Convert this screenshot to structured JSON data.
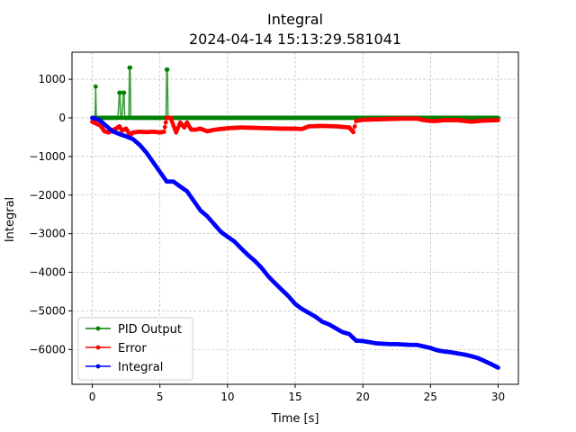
{
  "chart_data": {
    "type": "line",
    "title": "Integral",
    "subtitle": "2024-04-14 15:13:29.581041",
    "xlabel": "Time [s]",
    "ylabel": "Integral",
    "xlim": [
      -1.5,
      31.5
    ],
    "ylim": [
      -6900,
      1700
    ],
    "xticks": [
      0,
      5,
      10,
      15,
      20,
      25,
      30
    ],
    "yticks": [
      1000,
      0,
      -1000,
      -2000,
      -3000,
      -4000,
      -5000,
      -6000
    ],
    "ytick_labels": [
      "1000",
      "0",
      "−1000",
      "−2000",
      "−3000",
      "−4000",
      "−5000",
      "−6000"
    ],
    "grid": true,
    "legend_position": "lower-left",
    "series": [
      {
        "name": "PID Output",
        "color": "#008000",
        "x": [
          0,
          0.2,
          0.25,
          0.3,
          1.9,
          2.0,
          2.05,
          2.1,
          2.2,
          2.3,
          2.35,
          2.4,
          2.7,
          2.75,
          2.8,
          2.85,
          5.45,
          5.5,
          5.55,
          5.6,
          10,
          15,
          20,
          25,
          30
        ],
        "y": [
          0,
          0,
          810,
          0,
          0,
          650,
          650,
          0,
          0,
          650,
          650,
          0,
          0,
          1300,
          1300,
          0,
          0,
          1250,
          1250,
          0,
          0,
          0,
          0,
          0,
          0
        ]
      },
      {
        "name": "Error",
        "color": "#ff0000",
        "x": [
          0,
          0.3,
          0.6,
          0.9,
          1.2,
          1.5,
          1.8,
          2.0,
          2.2,
          2.5,
          2.8,
          3.0,
          3.5,
          4.0,
          4.5,
          5.0,
          5.3,
          5.5,
          5.8,
          6.0,
          6.2,
          6.5,
          6.8,
          7.0,
          7.3,
          7.6,
          8.0,
          8.5,
          9.0,
          10.0,
          11.0,
          12.0,
          13.0,
          14.0,
          15.0,
          15.5,
          16.0,
          17.0,
          18.0,
          19.0,
          19.3,
          19.5,
          20.0,
          21.0,
          22.0,
          23.0,
          24.0,
          24.5,
          25.0,
          25.5,
          26.0,
          27.0,
          28.0,
          29.0,
          30.0
        ],
        "y": [
          -100,
          -150,
          -200,
          -350,
          -380,
          -320,
          -270,
          -220,
          -330,
          -280,
          -450,
          -380,
          -360,
          -370,
          -360,
          -380,
          -360,
          0,
          0,
          -200,
          -380,
          -120,
          -250,
          -120,
          -300,
          -310,
          -280,
          -350,
          -310,
          -270,
          -250,
          -260,
          -270,
          -280,
          -280,
          -290,
          -220,
          -210,
          -220,
          -250,
          -370,
          -80,
          -50,
          -40,
          -30,
          -20,
          -20,
          -60,
          -80,
          -80,
          -60,
          -60,
          -100,
          -70,
          -60
        ]
      },
      {
        "name": "Integral",
        "color": "#0000ff",
        "x": [
          0,
          0.5,
          1.0,
          1.5,
          2.0,
          2.5,
          3.0,
          3.5,
          4.0,
          4.5,
          5.0,
          5.5,
          6.0,
          6.5,
          7.0,
          7.5,
          8.0,
          8.5,
          9.0,
          9.5,
          10.0,
          10.5,
          11.0,
          11.5,
          12.0,
          12.5,
          13.0,
          13.5,
          14.0,
          14.5,
          15.0,
          15.5,
          16.0,
          16.5,
          17.0,
          17.5,
          18.0,
          18.5,
          19.0,
          19.5,
          20.0,
          20.5,
          21.0,
          21.5,
          22.0,
          22.5,
          23.0,
          23.5,
          24.0,
          24.5,
          25.0,
          25.5,
          26.0,
          26.5,
          27.0,
          27.5,
          28.0,
          28.5,
          29.0,
          29.5,
          30.0
        ],
        "y": [
          0,
          -50,
          -200,
          -350,
          -420,
          -480,
          -550,
          -700,
          -900,
          -1150,
          -1400,
          -1650,
          -1650,
          -1780,
          -1900,
          -2150,
          -2400,
          -2550,
          -2750,
          -2950,
          -3080,
          -3200,
          -3380,
          -3550,
          -3700,
          -3880,
          -4100,
          -4280,
          -4450,
          -4620,
          -4820,
          -4950,
          -5050,
          -5150,
          -5280,
          -5350,
          -5450,
          -5550,
          -5600,
          -5770,
          -5780,
          -5810,
          -5840,
          -5850,
          -5860,
          -5860,
          -5870,
          -5880,
          -5880,
          -5920,
          -5960,
          -6020,
          -6050,
          -6070,
          -6100,
          -6130,
          -6170,
          -6220,
          -6300,
          -6380,
          -6470
        ]
      }
    ]
  }
}
